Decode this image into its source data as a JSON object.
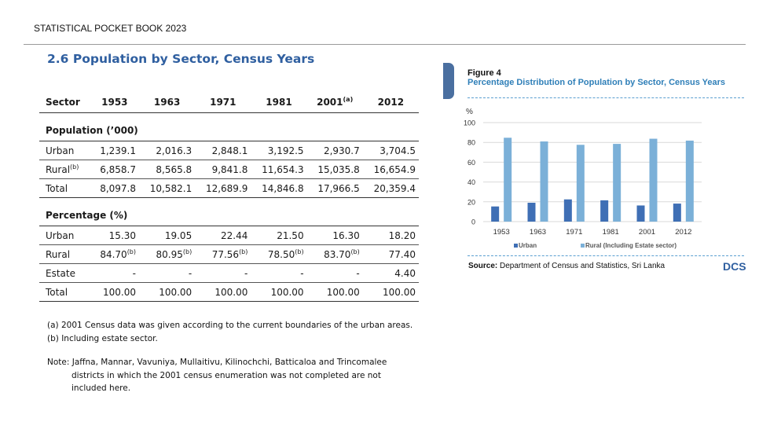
{
  "header": "STATISTICAL POCKET BOOK 2023",
  "section_title": "2.6  Population by Sector, Census Years",
  "table": {
    "columns": [
      "Sector",
      "1953",
      "1963",
      "1971",
      "1981",
      "2001",
      "2012"
    ],
    "col_2001_sup": "(a)",
    "group_population": "Population (’000)",
    "group_percentage": "Percentage (%)",
    "population_rows": [
      {
        "label": "Urban",
        "sup": "",
        "values": [
          "1,239.1",
          "2,016.3",
          "2,848.1",
          "3,192.5",
          "2,930.7",
          "3,704.5"
        ]
      },
      {
        "label": "Rural",
        "sup": "(b)",
        "values": [
          "6,858.7",
          "8,565.8",
          "9,841.8",
          "11,654.3",
          "15,035.8",
          "16,654.9"
        ]
      },
      {
        "label": "Total",
        "sup": "",
        "values": [
          "8,097.8",
          "10,582.1",
          "12,689.9",
          "14,846.8",
          "17,966.5",
          "20,359.4"
        ]
      }
    ],
    "percentage_rows": [
      {
        "label": "Urban",
        "values": [
          "15.30",
          "19.05",
          "22.44",
          "21.50",
          "16.30",
          "18.20"
        ],
        "sups": [
          "",
          "",
          "",
          "",
          "",
          ""
        ]
      },
      {
        "label": "Rural",
        "values": [
          "84.70",
          "80.95",
          "77.56",
          "78.50",
          "83.70",
          "77.40"
        ],
        "sups": [
          "(b)",
          "(b)",
          "(b)",
          "(b)",
          "(b)",
          ""
        ]
      },
      {
        "label": "Estate",
        "values": [
          "-",
          "-",
          "-",
          "-",
          "-",
          "4.40"
        ],
        "sups": [
          "",
          "",
          "",
          "",
          "",
          ""
        ]
      },
      {
        "label": "Total",
        "values": [
          "100.00",
          "100.00",
          "100.00",
          "100.00",
          "100.00",
          "100.00"
        ],
        "sups": [
          "",
          "",
          "",
          "",
          "",
          ""
        ]
      }
    ]
  },
  "notes": {
    "a": "(a)   2001 Census data was given according to the current boundaries of the urban areas.",
    "b": "(b) Including estate sector.",
    "note_line1": "Note: Jaffna, Mannar, Vavuniya, Mullaitivu, Kilinochchi, Batticaloa and Trincomalee",
    "note_line2": "districts in which the 2001 census enumeration was not completed are not",
    "note_line3": "included here."
  },
  "figure": {
    "label": "Figure 4",
    "title": "Percentage Distribution of Population by Sector, Census Years",
    "source_label": "Source:",
    "source_text": " Department of Census and Statistics, Sri Lanka",
    "logo_text": "DCS",
    "colors": {
      "urban": "#3f6fb5",
      "rural": "#7bb0d8"
    }
  },
  "chart_data": {
    "type": "bar",
    "categories": [
      "1953",
      "1963",
      "1971",
      "1981",
      "2001",
      "2012"
    ],
    "series": [
      {
        "name": "Urban",
        "values": [
          15.3,
          19.05,
          22.44,
          21.5,
          16.3,
          18.2
        ]
      },
      {
        "name": "Rural (Including Estate sector)",
        "values": [
          84.7,
          80.95,
          77.56,
          78.5,
          83.7,
          81.8
        ]
      }
    ],
    "ylabel": "%",
    "ylim": [
      0,
      100
    ],
    "yticks": [
      "0",
      "20",
      "40",
      "60",
      "80",
      "100"
    ],
    "grid": true,
    "legend": "bottom"
  }
}
